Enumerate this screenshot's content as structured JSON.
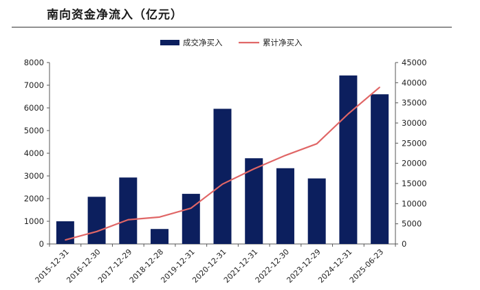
{
  "header": {
    "title": "南向资金净流入（亿元）"
  },
  "colors": {
    "bar": "#0c1f5e",
    "line": "#e06666",
    "axis": "#555555",
    "text": "#222222"
  },
  "chart_data": {
    "type": "bar",
    "title": "南向资金净流入（亿元）",
    "categories": [
      "2015-12-31",
      "2016-12-30",
      "2017-12-29",
      "2018-12-28",
      "2019-12-31",
      "2020-12-31",
      "2021-12-31",
      "2022-12-30",
      "2023-12-29",
      "2024-12-31",
      "2025-06-23"
    ],
    "series": [
      {
        "name": "成交净买入",
        "type": "bar",
        "axis": "left",
        "values": [
          1000,
          2080,
          2930,
          660,
          2210,
          5960,
          3780,
          3340,
          2890,
          7430,
          6600
        ]
      },
      {
        "name": "累计净买入",
        "type": "line",
        "axis": "right",
        "values": [
          1000,
          3080,
          6010,
          6670,
          8880,
          14840,
          18620,
          21960,
          24850,
          32280,
          38880
        ]
      }
    ],
    "ylim_left": [
      0,
      8000
    ],
    "yticks_left": [
      0,
      1000,
      2000,
      3000,
      4000,
      5000,
      6000,
      7000,
      8000
    ],
    "ylim_right": [
      0,
      45000
    ],
    "yticks_right": [
      0,
      5000,
      10000,
      15000,
      20000,
      25000,
      30000,
      35000,
      40000,
      45000
    ],
    "legend": "top-center",
    "grid": false
  }
}
